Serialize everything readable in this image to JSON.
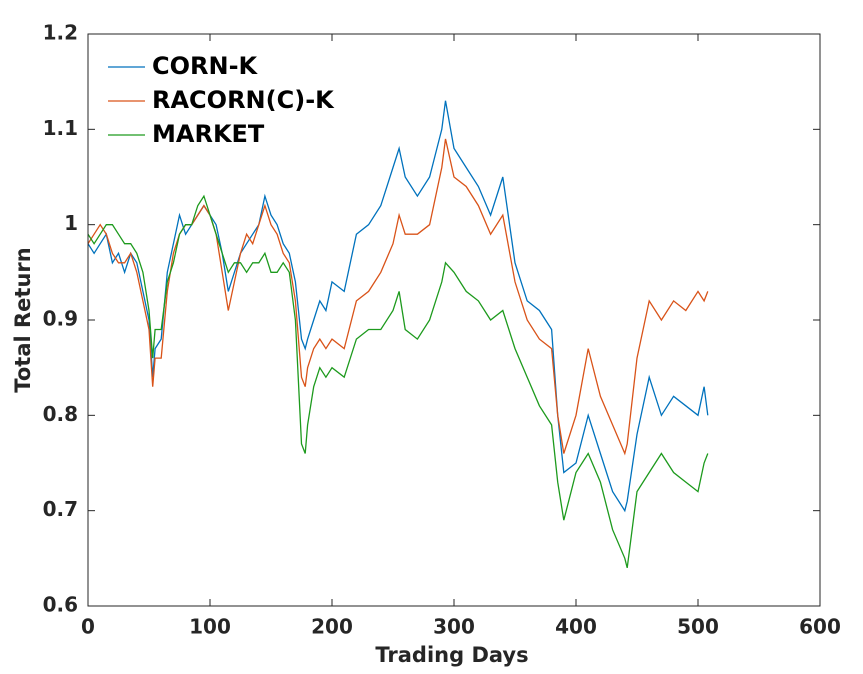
{
  "chart_data": {
    "type": "line",
    "xlabel": "Trading Days",
    "ylabel": "Total Return",
    "xlim": [
      0,
      600
    ],
    "xticks": [
      0,
      100,
      200,
      300,
      400,
      500,
      600
    ],
    "ylim": [
      0.6,
      1.2
    ],
    "yticks": [
      0.6,
      0.7,
      0.8,
      0.9,
      1,
      1.1,
      1.2
    ],
    "grid": false,
    "legend": "upper left",
    "x": [
      0,
      5,
      10,
      15,
      20,
      25,
      30,
      35,
      40,
      45,
      50,
      53,
      55,
      60,
      65,
      70,
      75,
      80,
      85,
      90,
      95,
      100,
      105,
      110,
      115,
      120,
      125,
      130,
      135,
      140,
      145,
      150,
      155,
      160,
      165,
      170,
      175,
      178,
      180,
      185,
      190,
      195,
      200,
      210,
      220,
      230,
      240,
      250,
      255,
      260,
      270,
      280,
      290,
      293,
      300,
      310,
      320,
      330,
      340,
      350,
      360,
      370,
      380,
      385,
      390,
      400,
      410,
      420,
      430,
      440,
      442,
      450,
      460,
      470,
      480,
      490,
      500,
      505,
      508
    ],
    "series": [
      {
        "name": "CORN-K",
        "color": "#0072bd",
        "values": [
          0.98,
          0.97,
          0.98,
          0.99,
          0.96,
          0.97,
          0.95,
          0.97,
          0.96,
          0.93,
          0.9,
          0.84,
          0.87,
          0.88,
          0.95,
          0.98,
          1.01,
          0.99,
          1.0,
          1.01,
          1.02,
          1.01,
          1.0,
          0.97,
          0.93,
          0.95,
          0.97,
          0.98,
          0.99,
          1.0,
          1.03,
          1.01,
          1.0,
          0.98,
          0.97,
          0.94,
          0.88,
          0.87,
          0.88,
          0.9,
          0.92,
          0.91,
          0.94,
          0.93,
          0.99,
          1.0,
          1.02,
          1.06,
          1.08,
          1.05,
          1.03,
          1.05,
          1.1,
          1.13,
          1.08,
          1.06,
          1.04,
          1.01,
          1.05,
          0.96,
          0.92,
          0.91,
          0.89,
          0.8,
          0.74,
          0.75,
          0.8,
          0.76,
          0.72,
          0.7,
          0.71,
          0.78,
          0.84,
          0.8,
          0.82,
          0.81,
          0.8,
          0.83,
          0.8
        ]
      },
      {
        "name": "RACORN(C)-K",
        "color": "#d95319",
        "values": [
          0.98,
          0.99,
          1.0,
          0.99,
          0.97,
          0.96,
          0.96,
          0.97,
          0.95,
          0.92,
          0.89,
          0.83,
          0.86,
          0.86,
          0.93,
          0.97,
          0.99,
          1.0,
          1.0,
          1.01,
          1.02,
          1.01,
          0.99,
          0.95,
          0.91,
          0.94,
          0.97,
          0.99,
          0.98,
          1.0,
          1.02,
          1.0,
          0.99,
          0.97,
          0.96,
          0.92,
          0.84,
          0.83,
          0.85,
          0.87,
          0.88,
          0.87,
          0.88,
          0.87,
          0.92,
          0.93,
          0.95,
          0.98,
          1.01,
          0.99,
          0.99,
          1.0,
          1.06,
          1.09,
          1.05,
          1.04,
          1.02,
          0.99,
          1.01,
          0.94,
          0.9,
          0.88,
          0.87,
          0.8,
          0.76,
          0.8,
          0.87,
          0.82,
          0.79,
          0.76,
          0.77,
          0.86,
          0.92,
          0.9,
          0.92,
          0.91,
          0.93,
          0.92,
          0.93
        ]
      },
      {
        "name": "MARKET",
        "color": "#1d9a1d",
        "values": [
          0.99,
          0.98,
          0.99,
          1.0,
          1.0,
          0.99,
          0.98,
          0.98,
          0.97,
          0.95,
          0.91,
          0.86,
          0.89,
          0.89,
          0.94,
          0.96,
          0.99,
          1.0,
          1.0,
          1.02,
          1.03,
          1.01,
          0.99,
          0.97,
          0.95,
          0.96,
          0.96,
          0.95,
          0.96,
          0.96,
          0.97,
          0.95,
          0.95,
          0.96,
          0.95,
          0.9,
          0.77,
          0.76,
          0.79,
          0.83,
          0.85,
          0.84,
          0.85,
          0.84,
          0.88,
          0.89,
          0.89,
          0.91,
          0.93,
          0.89,
          0.88,
          0.9,
          0.94,
          0.96,
          0.95,
          0.93,
          0.92,
          0.9,
          0.91,
          0.87,
          0.84,
          0.81,
          0.79,
          0.73,
          0.69,
          0.74,
          0.76,
          0.73,
          0.68,
          0.65,
          0.64,
          0.72,
          0.74,
          0.76,
          0.74,
          0.73,
          0.72,
          0.75,
          0.76
        ]
      }
    ]
  }
}
